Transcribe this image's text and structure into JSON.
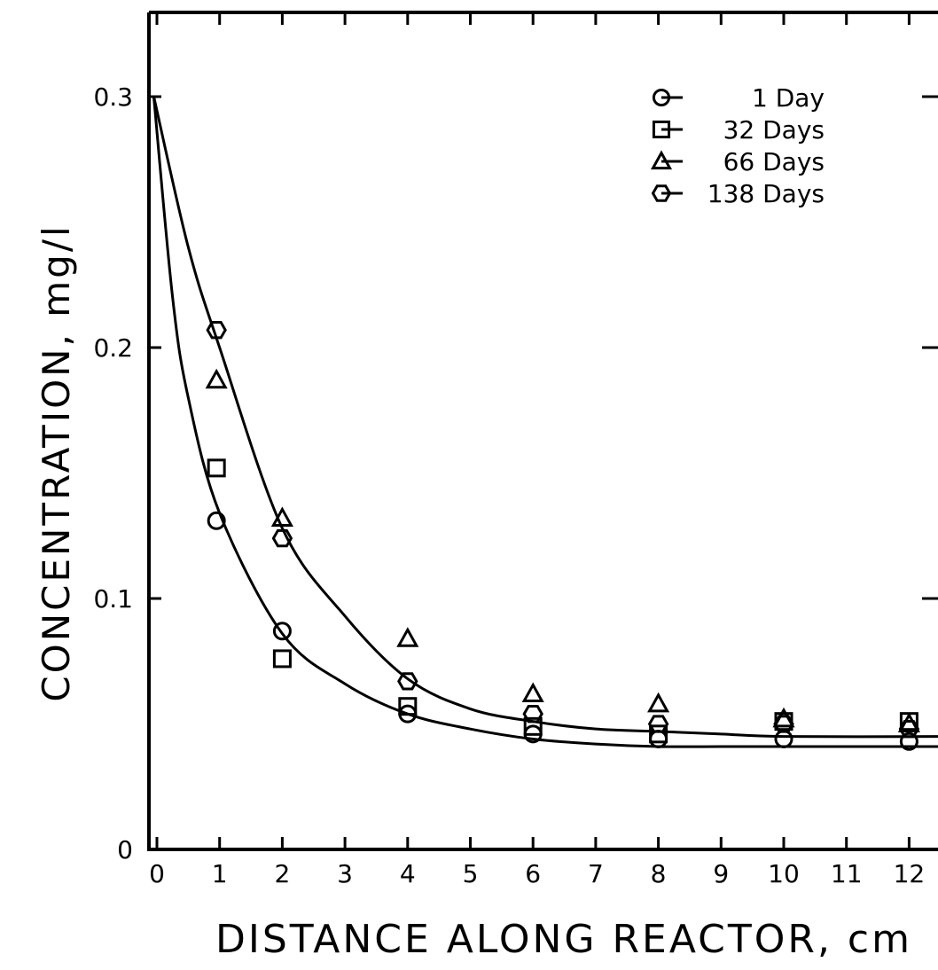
{
  "chart_data": {
    "type": "scatter",
    "title": "",
    "xlabel": "DISTANCE ALONG REACTOR, cm",
    "ylabel": "CONCENTRATION, mg/l",
    "xlim": [
      -0.1,
      12.5
    ],
    "ylim": [
      0,
      0.33
    ],
    "x_ticks": [
      0,
      1,
      2,
      3,
      4,
      5,
      6,
      7,
      8,
      9,
      10,
      11,
      12
    ],
    "x_tick_labels": [
      "0",
      "1",
      "2",
      "3",
      "4",
      "5",
      "6",
      "7",
      "8",
      "9",
      "10",
      "11",
      "12"
    ],
    "y_ticks": [
      0,
      0.1,
      0.2,
      0.3
    ],
    "y_tick_labels": [
      "0",
      "0.1",
      "0.2",
      "0.3"
    ],
    "grid": false,
    "legend_position": "top-right",
    "series": [
      {
        "name": "1 Day",
        "marker": "circle",
        "points": [
          [
            0.95,
            0.131
          ],
          [
            2.0,
            0.087
          ],
          [
            4.0,
            0.054
          ],
          [
            6.0,
            0.046
          ],
          [
            8.0,
            0.044
          ],
          [
            10.0,
            0.044
          ],
          [
            12.0,
            0.043
          ]
        ]
      },
      {
        "name": "32 Days",
        "marker": "square",
        "points": [
          [
            0.95,
            0.152
          ],
          [
            2.0,
            0.076
          ],
          [
            4.0,
            0.057
          ],
          [
            6.0,
            0.049
          ],
          [
            8.0,
            0.046
          ],
          [
            10.0,
            0.051
          ],
          [
            12.0,
            0.051
          ]
        ]
      },
      {
        "name": "66 Days",
        "marker": "triangle",
        "points": [
          [
            0.95,
            0.187
          ],
          [
            2.0,
            0.132
          ],
          [
            4.0,
            0.084
          ],
          [
            6.0,
            0.062
          ],
          [
            8.0,
            0.058
          ],
          [
            10.0,
            0.052
          ],
          [
            12.0,
            0.05
          ]
        ]
      },
      {
        "name": "138 Days",
        "marker": "hexagon",
        "points": [
          [
            0.95,
            0.207
          ],
          [
            2.0,
            0.124
          ],
          [
            4.0,
            0.067
          ],
          [
            6.0,
            0.054
          ],
          [
            8.0,
            0.05
          ],
          [
            10.0,
            0.05
          ],
          [
            12.0,
            0.048
          ]
        ]
      }
    ],
    "fit_curves": [
      {
        "points": [
          [
            -0.05,
            0.3
          ],
          [
            0.5,
            0.24
          ],
          [
            1,
            0.2
          ],
          [
            2,
            0.128
          ],
          [
            3,
            0.093
          ],
          [
            4,
            0.068
          ],
          [
            5,
            0.056
          ],
          [
            6,
            0.051
          ],
          [
            7,
            0.048
          ],
          [
            8,
            0.047
          ],
          [
            9,
            0.046
          ],
          [
            10,
            0.045
          ],
          [
            12.5,
            0.045
          ]
        ]
      },
      {
        "points": [
          [
            -0.05,
            0.3
          ],
          [
            0.25,
            0.22
          ],
          [
            0.5,
            0.18
          ],
          [
            1,
            0.134
          ],
          [
            2,
            0.086
          ],
          [
            3,
            0.066
          ],
          [
            4,
            0.054
          ],
          [
            5,
            0.048
          ],
          [
            6,
            0.044
          ],
          [
            7,
            0.042
          ],
          [
            8,
            0.041
          ],
          [
            9,
            0.041
          ],
          [
            10,
            0.041
          ],
          [
            12.5,
            0.041
          ]
        ]
      }
    ]
  }
}
